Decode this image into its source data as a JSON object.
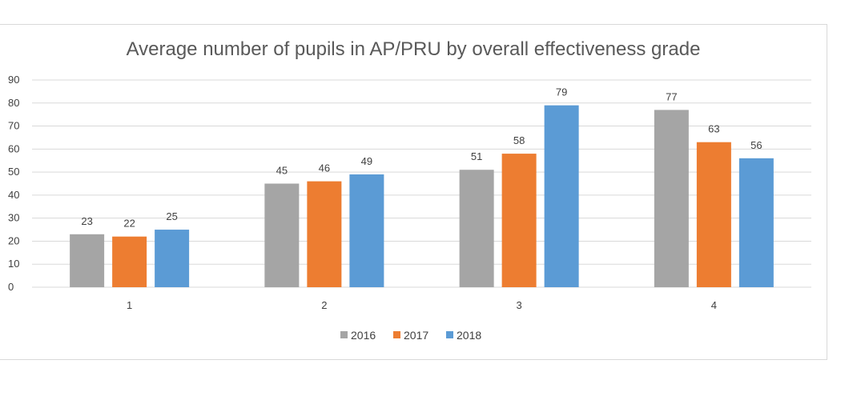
{
  "chart_data": {
    "type": "bar",
    "title": "Average number of pupils in AP/PRU by overall effectiveness grade",
    "categories": [
      "1",
      "2",
      "3",
      "4"
    ],
    "series": [
      {
        "name": "2016",
        "values": [
          23,
          45,
          51,
          77
        ],
        "color": "#A5A5A5"
      },
      {
        "name": "2017",
        "values": [
          22,
          46,
          58,
          63
        ],
        "color": "#ED7D31"
      },
      {
        "name": "2018",
        "values": [
          25,
          49,
          79,
          56
        ],
        "color": "#5B9BD5"
      }
    ],
    "xlabel": "",
    "ylabel": "",
    "ylim": [
      0,
      90
    ],
    "yticks": [
      0,
      10,
      20,
      30,
      40,
      50,
      60,
      70,
      80,
      90
    ],
    "grid": true,
    "legend": "bottom"
  }
}
